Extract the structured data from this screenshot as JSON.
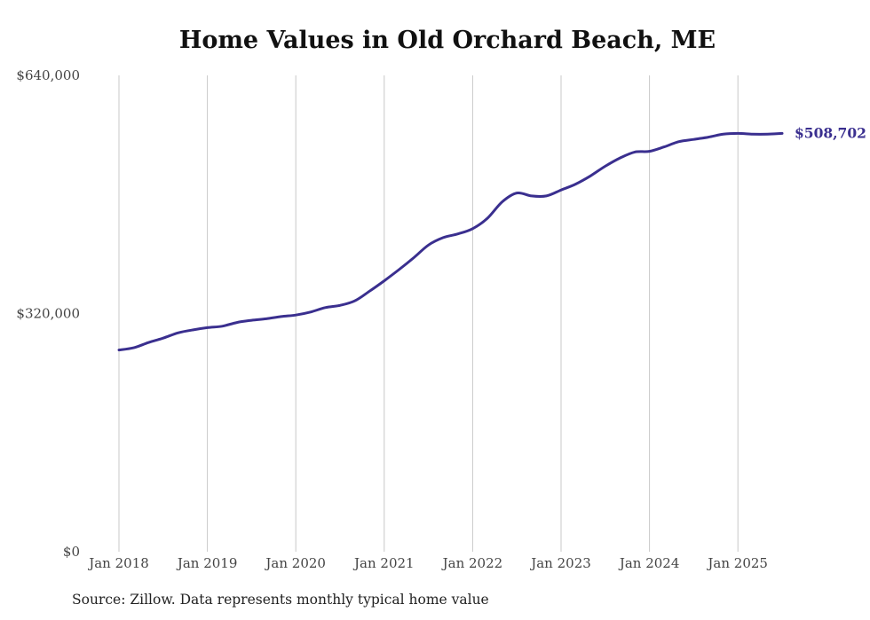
{
  "chart_data": {
    "type": "line",
    "title": "Home Values in Old Orchard Beach, ME",
    "xlabel": "",
    "ylabel": "",
    "x_ticks": [
      "Jan 2018",
      "Jan 2019",
      "Jan 2020",
      "Jan 2021",
      "Jan 2022",
      "Jan 2023",
      "Jan 2024",
      "Jan 2025"
    ],
    "y_ticks": [
      "$0",
      "$320,000",
      "$640,000"
    ],
    "ylim": [
      0,
      640000
    ],
    "grid": "vertical",
    "line_color": "#3a2f8f",
    "end_label": "$508,702",
    "series": [
      {
        "x": [
          "2018-01",
          "2018-03",
          "2018-05",
          "2018-07",
          "2018-09",
          "2018-11",
          "2019-01",
          "2019-03",
          "2019-05",
          "2019-07",
          "2019-09",
          "2019-11",
          "2020-01",
          "2020-03",
          "2020-05",
          "2020-07",
          "2020-09",
          "2020-11",
          "2021-01",
          "2021-03",
          "2021-05",
          "2021-07",
          "2021-09",
          "2021-11",
          "2022-01",
          "2022-03",
          "2022-05",
          "2022-07",
          "2022-09",
          "2022-11",
          "2023-01",
          "2023-03",
          "2023-05",
          "2023-07",
          "2023-09",
          "2023-11",
          "2024-01",
          "2024-03",
          "2024-05",
          "2024-07",
          "2024-09",
          "2024-11",
          "2025-01",
          "2025-03",
          "2025-05",
          "2025-07"
        ],
        "values": [
          271000,
          274000,
          281000,
          287000,
          294000,
          298000,
          301000,
          303000,
          308000,
          311000,
          313000,
          316000,
          318000,
          322000,
          328000,
          331000,
          337000,
          350000,
          364000,
          379000,
          395000,
          412000,
          422000,
          427000,
          434000,
          448000,
          470000,
          482000,
          478000,
          478000,
          486000,
          494000,
          505000,
          518000,
          529000,
          537000,
          538000,
          544000,
          551000,
          554000,
          557000,
          561000,
          562000,
          561000,
          561000,
          508702
        ]
      }
    ]
  },
  "source_note": "Source: Zillow. Data represents monthly typical home value"
}
